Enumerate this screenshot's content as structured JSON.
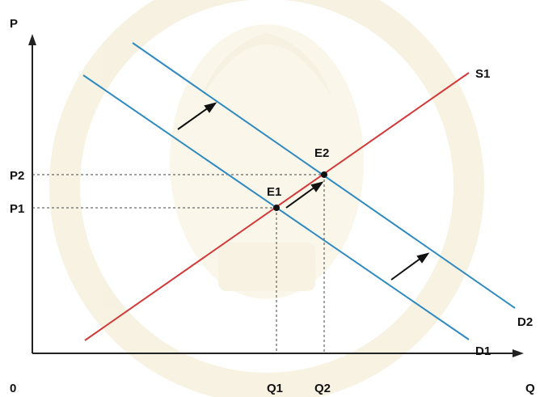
{
  "axes": {
    "y_label": "P",
    "x_label": "Q",
    "origin_label": "0"
  },
  "curves": {
    "supply": {
      "label": "S1",
      "color": "#d23a3a"
    },
    "demand_1": {
      "label": "D1",
      "color": "#2f8ac0"
    },
    "demand_2": {
      "label": "D2",
      "color": "#2f8ac0"
    }
  },
  "equilibria": {
    "e1": {
      "label": "E1",
      "price_label": "P1",
      "quantity_label": "Q1"
    },
    "e2": {
      "label": "E2",
      "price_label": "P2",
      "quantity_label": "Q2"
    }
  },
  "colors": {
    "axis": "#222222",
    "guide": "#444444",
    "arrow": "#111111",
    "text": "#111111",
    "watermark": "#e8d9a8"
  }
}
